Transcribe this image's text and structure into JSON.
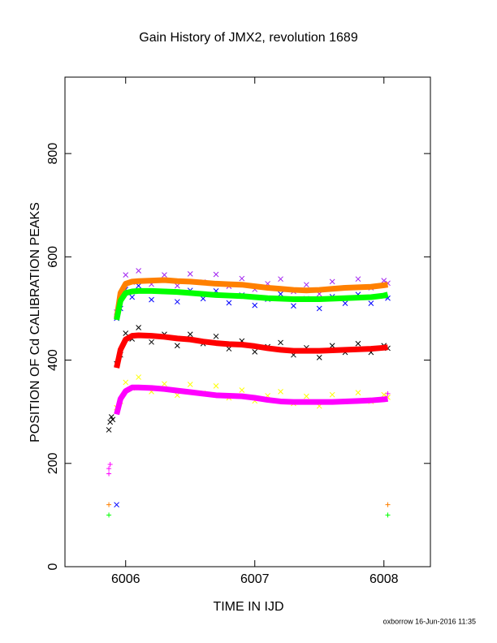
{
  "chart_data": {
    "type": "scatter",
    "title": "Gain History of JMX2, revolution 1689",
    "x_label": "TIME IN IJD",
    "y_label": "POSITION OF Cd CALIBRATION PEAKS",
    "footer": "oxborrow 16-Jun-2016 11:35",
    "xlim": [
      6005.53,
      6008.36
    ],
    "ylim": [
      0,
      948
    ],
    "xticks": [
      6006,
      6007,
      6008
    ],
    "yticks": [
      0,
      200,
      400,
      600,
      800
    ],
    "x": [
      6005.93,
      6005.96,
      6006.0,
      6006.05,
      6006.1,
      6006.2,
      6006.3,
      6006.4,
      6006.5,
      6006.6,
      6006.7,
      6006.8,
      6006.9,
      6007.0,
      6007.1,
      6007.2,
      6007.3,
      6007.4,
      6007.5,
      6007.6,
      6007.7,
      6007.8,
      6007.9,
      6008.0,
      6008.03
    ],
    "series": [
      {
        "color": "#a020f0",
        "marker": "x",
        "values": [
          493,
          525,
          565,
          551,
          573,
          547,
          565,
          544,
          567,
          551,
          566,
          543,
          558,
          537,
          548,
          557,
          533,
          546,
          528,
          552,
          540,
          557,
          540,
          554,
          549
        ]
      },
      {
        "color": "#0000ff",
        "marker": "x",
        "values": [
          481,
          500,
          537,
          522,
          544,
          517,
          533,
          513,
          535,
          519,
          534,
          511,
          526,
          506,
          518,
          528,
          505,
          519,
          500,
          523,
          510,
          527,
          510,
          524,
          520
        ]
      },
      {
        "color": "#000000",
        "marker": "x",
        "values": [
          393,
          410,
          452,
          441,
          463,
          435,
          450,
          428,
          450,
          432,
          446,
          422,
          437,
          416,
          426,
          434,
          410,
          424,
          405,
          428,
          415,
          432,
          415,
          428,
          423
        ]
      },
      {
        "color": "#ffff00",
        "marker": "x",
        "values": [
          308,
          320,
          357,
          346,
          367,
          339,
          354,
          332,
          353,
          336,
          350,
          327,
          342,
          321,
          331,
          339,
          316,
          330,
          311,
          333,
          320,
          337,
          320,
          333,
          328
        ]
      },
      {
        "color": "#ff8000",
        "marker": "line",
        "values": [
          480,
          530,
          548,
          552,
          553,
          554,
          555,
          553,
          552,
          550,
          548,
          547,
          546,
          543,
          540,
          538,
          536,
          535,
          536,
          538,
          540,
          541,
          542,
          545,
          546
        ]
      },
      {
        "color": "#00ff00",
        "marker": "line",
        "values": [
          478,
          515,
          530,
          533,
          534,
          534,
          533,
          532,
          530,
          528,
          526,
          525,
          524,
          522,
          520,
          519,
          518,
          518,
          518,
          519,
          520,
          521,
          522,
          525,
          527
        ]
      },
      {
        "color": "#ff0000",
        "marker": "line",
        "values": [
          385,
          420,
          440,
          447,
          448,
          447,
          445,
          442,
          440,
          436,
          433,
          431,
          430,
          427,
          423,
          420,
          418,
          418,
          418,
          419,
          420,
          421,
          422,
          424,
          425
        ]
      },
      {
        "color": "#ff00ff",
        "marker": "line",
        "values": [
          295,
          325,
          340,
          347,
          347,
          346,
          344,
          341,
          338,
          335,
          332,
          331,
          330,
          327,
          323,
          320,
          319,
          319,
          319,
          319,
          320,
          321,
          322,
          324,
          325
        ]
      },
      {
        "color": "#ff8000",
        "marker": "+",
        "x": [
          6005.87,
          6008.03
        ],
        "values": [
          120,
          120
        ]
      },
      {
        "color": "#00ff00",
        "marker": "+",
        "x": [
          6005.87,
          6008.03
        ],
        "values": [
          100,
          100
        ]
      },
      {
        "color": "#ff00ff",
        "marker": "+",
        "x": [
          6005.87,
          6005.87,
          6005.88,
          6008.03
        ],
        "values": [
          180,
          190,
          198,
          335
        ]
      },
      {
        "color": "#0000ff",
        "marker": "x",
        "x": [
          6005.93
        ],
        "values": [
          120
        ]
      },
      {
        "color": "#000000",
        "marker": "x",
        "x": [
          6005.87,
          6005.88,
          6005.89,
          6005.9
        ],
        "values": [
          265,
          280,
          290,
          285
        ]
      }
    ]
  }
}
